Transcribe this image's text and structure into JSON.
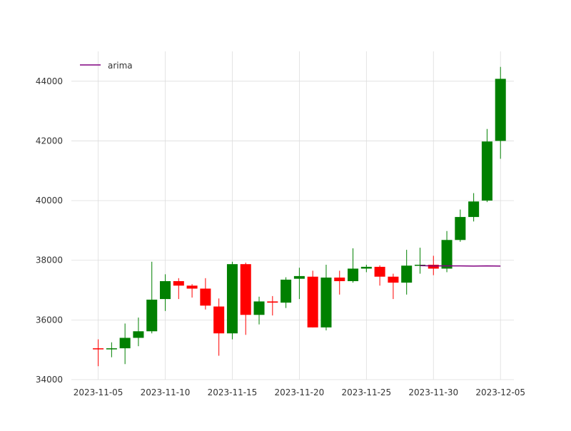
{
  "chart_data": {
    "type": "candlestick",
    "title": "",
    "xlabel": "",
    "ylabel": "",
    "grid": true,
    "legend_position": "top-left",
    "ylim": [
      34000,
      45000
    ],
    "xlim": [
      "2023-11-03",
      "2023-12-06"
    ],
    "x_ticks": [
      "2023-11-05",
      "2023-11-10",
      "2023-11-15",
      "2023-11-20",
      "2023-11-25",
      "2023-11-30",
      "2023-12-05"
    ],
    "y_ticks": [
      34000,
      36000,
      38000,
      40000,
      42000,
      44000
    ],
    "colors": {
      "up": "#008000",
      "down": "#ff0000",
      "arima": "#800080",
      "grid": "#dddddd"
    },
    "candles": [
      {
        "date": "2023-11-05",
        "open": 35050,
        "high": 35350,
        "low": 34450,
        "close": 35020
      },
      {
        "date": "2023-11-06",
        "open": 35020,
        "high": 35250,
        "low": 34750,
        "close": 35050
      },
      {
        "date": "2023-11-07",
        "open": 35050,
        "high": 35880,
        "low": 34520,
        "close": 35400
      },
      {
        "date": "2023-11-08",
        "open": 35400,
        "high": 36080,
        "low": 35120,
        "close": 35620
      },
      {
        "date": "2023-11-09",
        "open": 35620,
        "high": 37950,
        "low": 35550,
        "close": 36680
      },
      {
        "date": "2023-11-10",
        "open": 36700,
        "high": 37530,
        "low": 36300,
        "close": 37300
      },
      {
        "date": "2023-11-11",
        "open": 37300,
        "high": 37400,
        "low": 36700,
        "close": 37150
      },
      {
        "date": "2023-11-12",
        "open": 37150,
        "high": 37200,
        "low": 36750,
        "close": 37050
      },
      {
        "date": "2023-11-13",
        "open": 37050,
        "high": 37400,
        "low": 36350,
        "close": 36480
      },
      {
        "date": "2023-11-14",
        "open": 36450,
        "high": 36720,
        "low": 34800,
        "close": 35550
      },
      {
        "date": "2023-11-15",
        "open": 35550,
        "high": 37950,
        "low": 35350,
        "close": 37870
      },
      {
        "date": "2023-11-16",
        "open": 37870,
        "high": 37920,
        "low": 35500,
        "close": 36170
      },
      {
        "date": "2023-11-17",
        "open": 36170,
        "high": 36780,
        "low": 35850,
        "close": 36620
      },
      {
        "date": "2023-11-18",
        "open": 36620,
        "high": 36800,
        "low": 36150,
        "close": 36580
      },
      {
        "date": "2023-11-19",
        "open": 36580,
        "high": 37430,
        "low": 36400,
        "close": 37350
      },
      {
        "date": "2023-11-20",
        "open": 37380,
        "high": 37750,
        "low": 36700,
        "close": 37470
      },
      {
        "date": "2023-11-21",
        "open": 37450,
        "high": 37650,
        "low": 35750,
        "close": 35750
      },
      {
        "date": "2023-11-22",
        "open": 35750,
        "high": 37850,
        "low": 35650,
        "close": 37420
      },
      {
        "date": "2023-11-23",
        "open": 37420,
        "high": 37650,
        "low": 36850,
        "close": 37300
      },
      {
        "date": "2023-11-24",
        "open": 37300,
        "high": 38400,
        "low": 37250,
        "close": 37720
      },
      {
        "date": "2023-11-25",
        "open": 37720,
        "high": 37850,
        "low": 37600,
        "close": 37780
      },
      {
        "date": "2023-11-26",
        "open": 37780,
        "high": 37830,
        "low": 37150,
        "close": 37450
      },
      {
        "date": "2023-11-27",
        "open": 37450,
        "high": 37550,
        "low": 36700,
        "close": 37250
      },
      {
        "date": "2023-11-28",
        "open": 37250,
        "high": 38350,
        "low": 36850,
        "close": 37820
      },
      {
        "date": "2023-11-29",
        "open": 37820,
        "high": 38420,
        "low": 37550,
        "close": 37850
      },
      {
        "date": "2023-11-30",
        "open": 37850,
        "high": 38150,
        "low": 37500,
        "close": 37720
      },
      {
        "date": "2023-12-01",
        "open": 37720,
        "high": 38980,
        "low": 37600,
        "close": 38680
      },
      {
        "date": "2023-12-02",
        "open": 38680,
        "high": 39700,
        "low": 38620,
        "close": 39450
      },
      {
        "date": "2023-12-03",
        "open": 39450,
        "high": 40250,
        "low": 39300,
        "close": 39970
      },
      {
        "date": "2023-12-04",
        "open": 40000,
        "high": 42400,
        "low": 39950,
        "close": 41980
      },
      {
        "date": "2023-12-05",
        "open": 42000,
        "high": 44480,
        "low": 41400,
        "close": 44080
      }
    ],
    "series": [
      {
        "name": "arima",
        "type": "line",
        "x": [
          "2023-11-29",
          "2023-11-30",
          "2023-12-01",
          "2023-12-02",
          "2023-12-03",
          "2023-12-04",
          "2023-12-05"
        ],
        "values": [
          37820,
          37810,
          37815,
          37810,
          37805,
          37810,
          37805
        ]
      }
    ]
  }
}
